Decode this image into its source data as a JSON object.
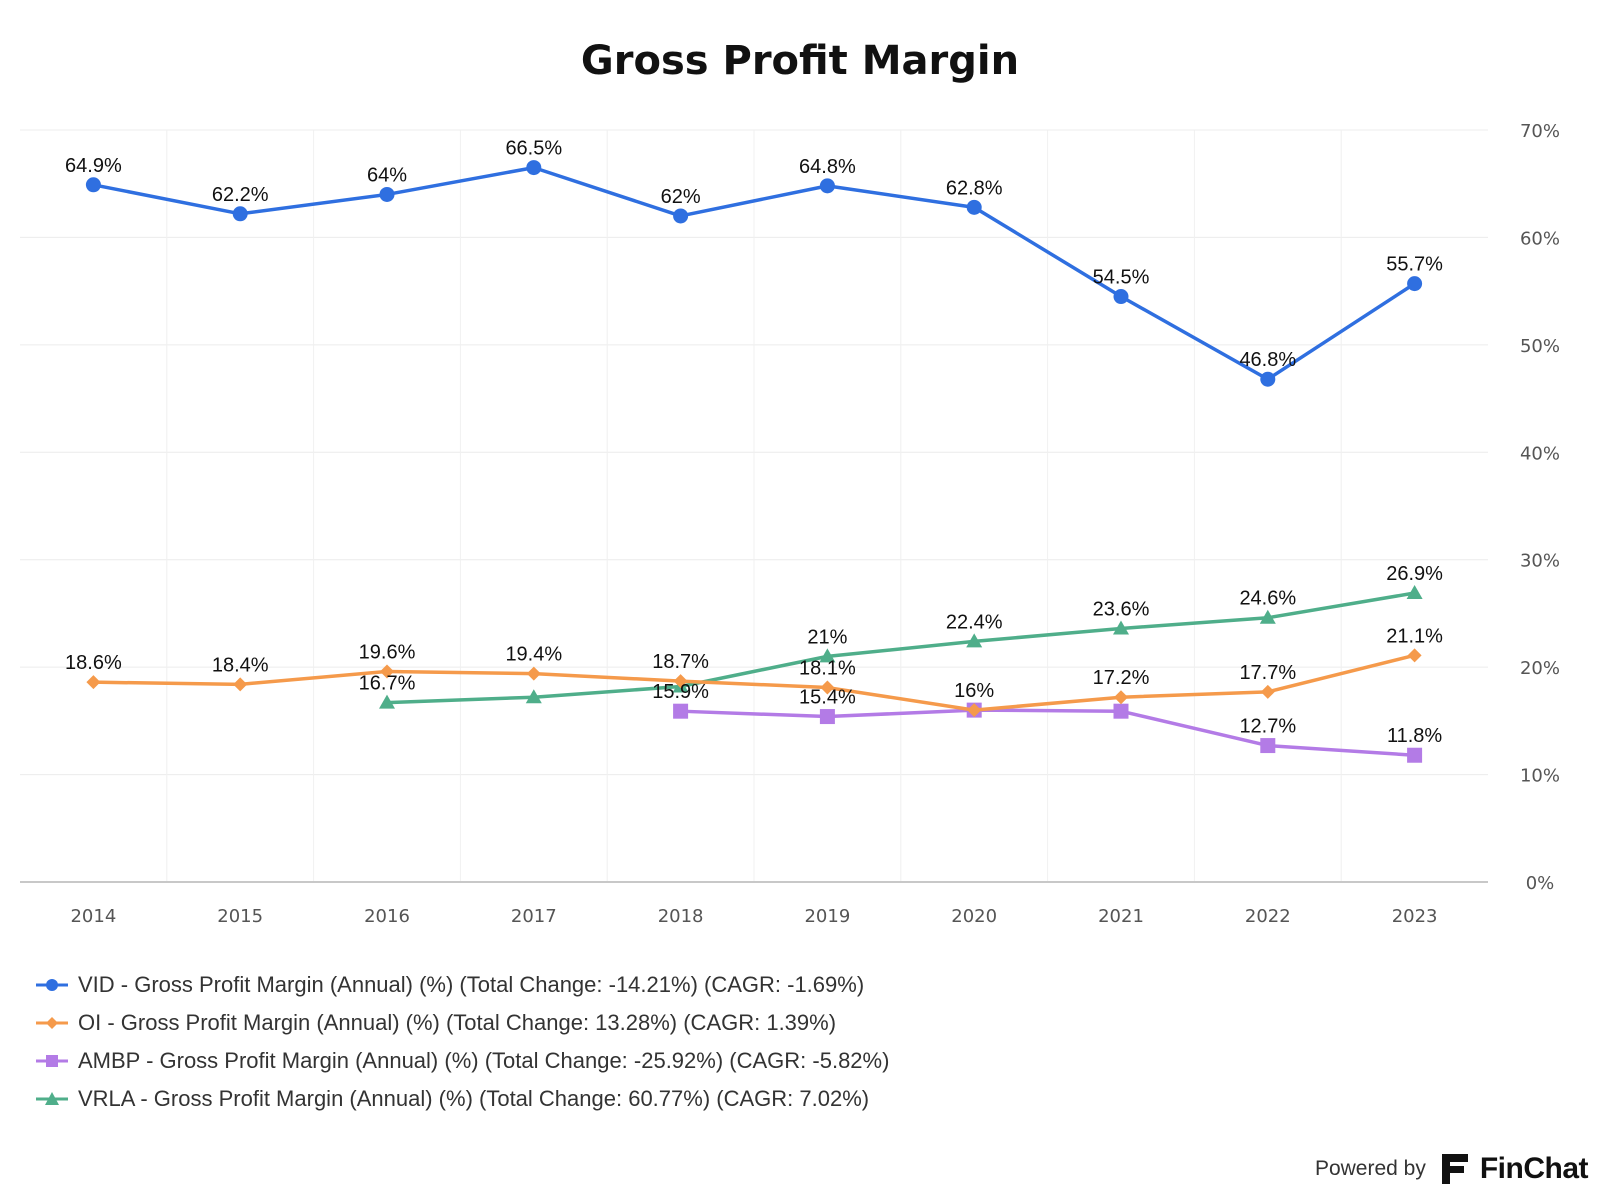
{
  "chart_data": {
    "type": "line",
    "title": "Gross Profit Margin",
    "x": [
      "2014",
      "2015",
      "2016",
      "2017",
      "2018",
      "2019",
      "2020",
      "2021",
      "2022",
      "2023"
    ],
    "y_axis": {
      "position": "right",
      "ylim": [
        0,
        70
      ],
      "ticks": [
        0,
        10,
        20,
        30,
        40,
        50,
        60,
        70
      ],
      "tick_labels": [
        "0%",
        "10%",
        "20%",
        "30%",
        "40%",
        "50%",
        "60%",
        "70%"
      ]
    },
    "grid": true,
    "legend_position": "bottom-left",
    "series": [
      {
        "name": "VID - Gross Profit Margin (Annual) (%) (Total Change: -14.21%) (CAGR: -1.69%)",
        "color": "#2f6fe0",
        "marker": "circle",
        "values": [
          64.9,
          62.2,
          64.0,
          66.5,
          62.0,
          64.8,
          62.8,
          54.5,
          46.8,
          55.7
        ],
        "labels": [
          "64.9%",
          "62.2%",
          "64%",
          "66.5%",
          "62%",
          "64.8%",
          "62.8%",
          "54.5%",
          "46.8%",
          "55.7%"
        ]
      },
      {
        "name": "OI - Gross Profit Margin (Annual) (%) (Total Change: 13.28%) (CAGR: 1.39%)",
        "color": "#f59a4b",
        "marker": "diamond",
        "values": [
          18.6,
          18.4,
          19.6,
          19.4,
          18.7,
          18.1,
          16.0,
          17.2,
          17.7,
          21.1
        ],
        "labels": [
          "18.6%",
          "18.4%",
          "19.6%",
          "19.4%",
          "18.7%",
          "18.1%",
          "16%",
          "17.2%",
          "17.7%",
          "21.1%"
        ]
      },
      {
        "name": "AMBP - Gross Profit Margin (Annual) (%) (Total Change: -25.92%) (CAGR: -5.82%)",
        "color": "#b37be6",
        "marker": "square",
        "values": [
          null,
          null,
          null,
          null,
          15.9,
          15.4,
          16.0,
          15.9,
          12.7,
          11.8
        ],
        "labels": [
          null,
          null,
          null,
          null,
          "15.9%",
          "15.4%",
          null,
          null,
          "12.7%",
          "11.8%"
        ]
      },
      {
        "name": "VRLA - Gross Profit Margin (Annual) (%) (Total Change: 60.77%) (CAGR: 7.02%)",
        "color": "#4fae8a",
        "marker": "triangle",
        "values": [
          null,
          null,
          16.7,
          17.2,
          18.2,
          21.0,
          22.4,
          23.6,
          24.6,
          26.9
        ],
        "labels": [
          null,
          null,
          "16.7%",
          null,
          null,
          "21%",
          "22.4%",
          "23.6%",
          "24.6%",
          "26.9%"
        ]
      }
    ]
  },
  "footer": {
    "powered_by": "Powered by",
    "brand": "FinChat"
  }
}
